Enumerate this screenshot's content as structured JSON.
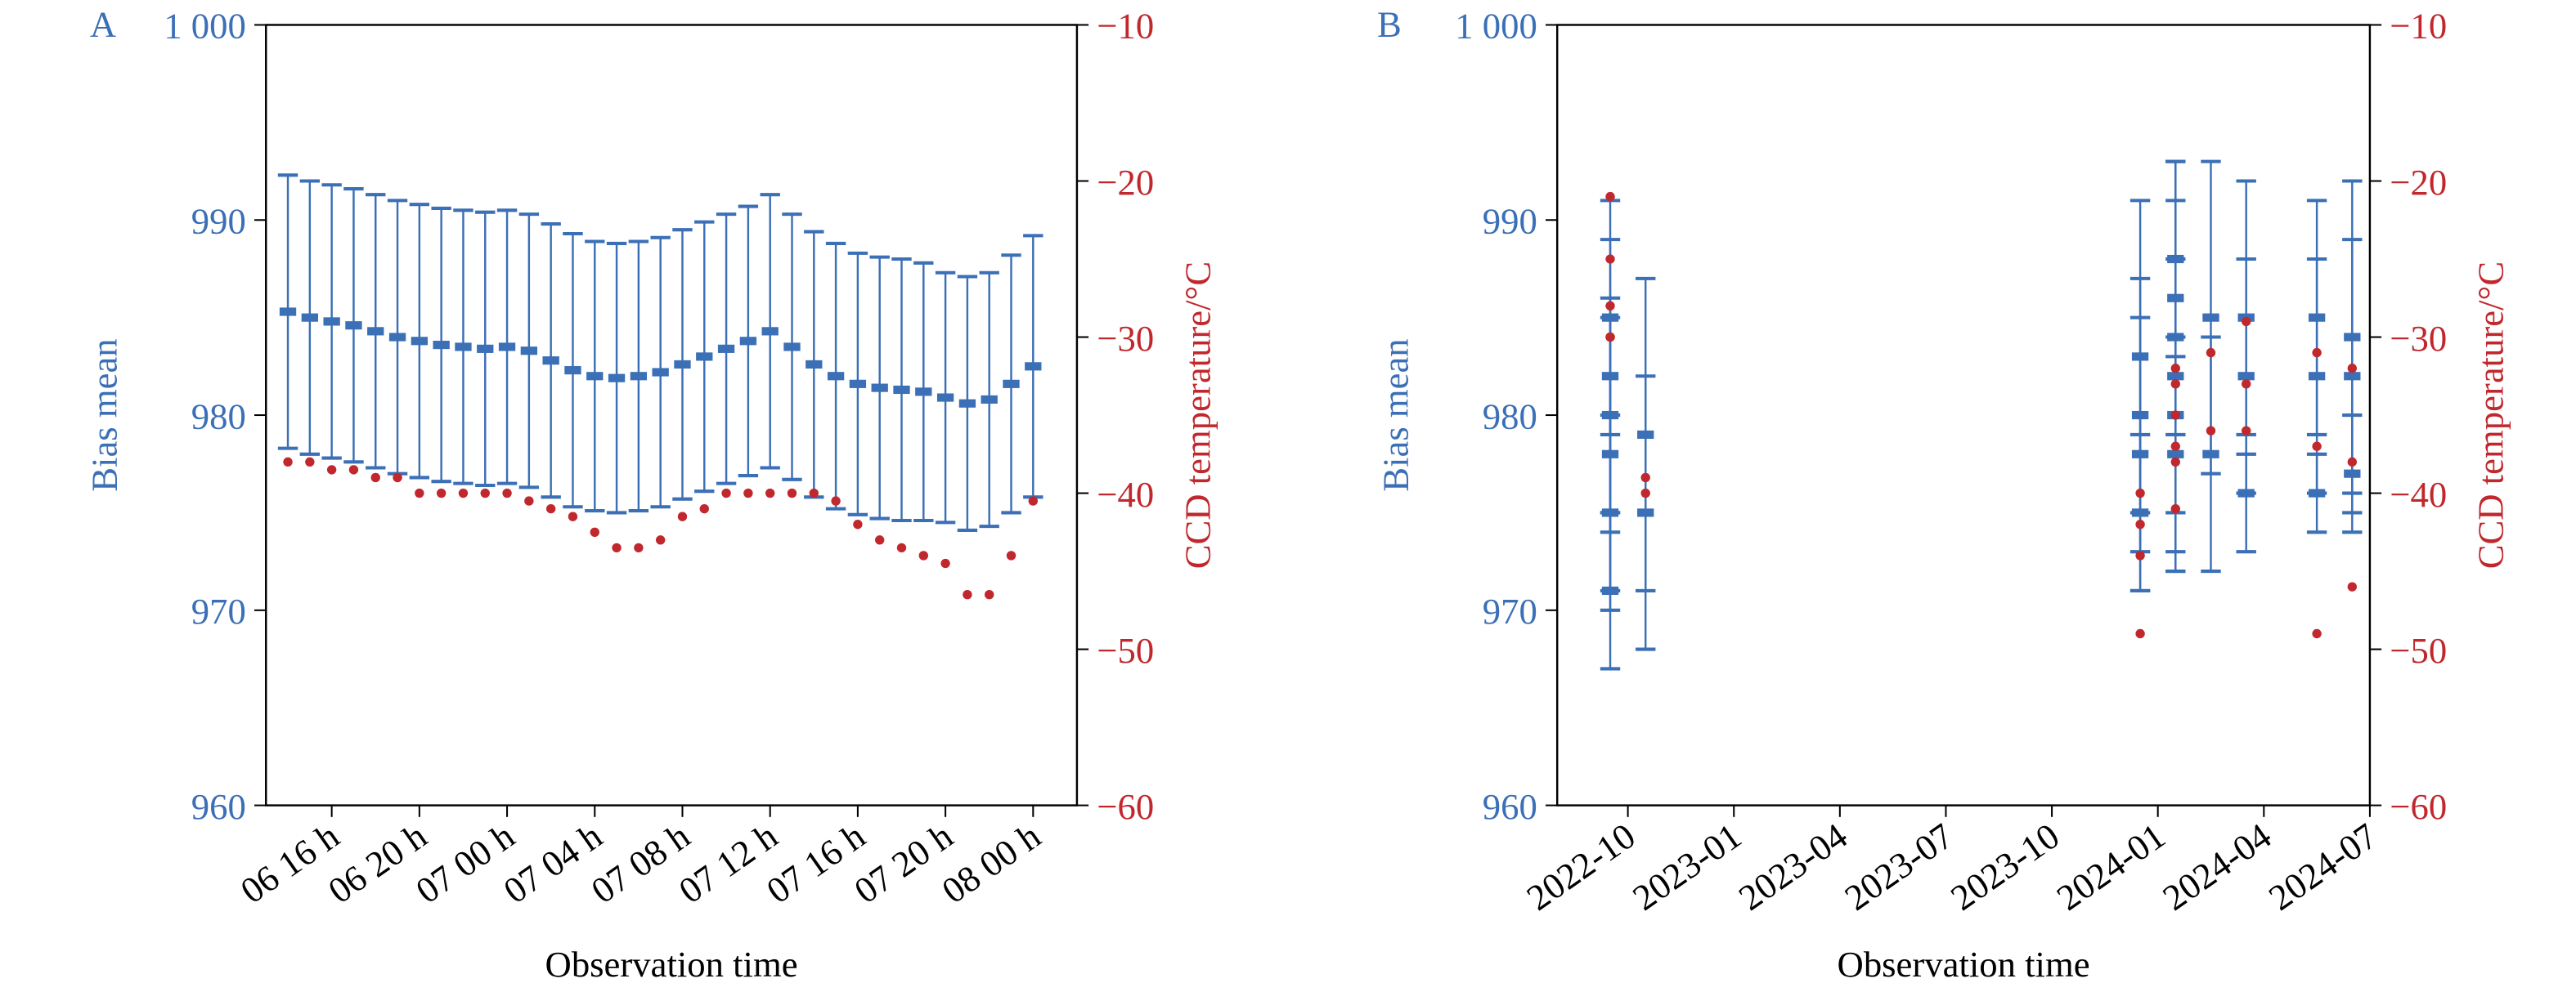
{
  "chart_data": [
    {
      "type": "scatter",
      "title": "A",
      "xlabel": "Observation time",
      "ylabel": "Bias mean",
      "y2label": "CCD temperature/°C",
      "x": [
        14,
        15,
        16,
        17,
        18,
        19,
        20,
        21,
        22,
        23,
        24,
        25,
        26,
        27,
        28,
        29,
        30,
        31,
        32,
        33,
        34,
        35,
        36,
        37,
        38,
        39,
        40,
        41,
        42,
        43,
        44,
        45,
        46,
        47,
        48
      ],
      "series": [
        {
          "color": "#3b6fb6",
          "values": [
            985.3,
            985,
            984.8,
            984.6,
            984.3,
            984,
            983.8,
            983.6,
            983.5,
            983.4,
            983.5,
            983.3,
            982.8,
            982.3,
            982,
            981.9,
            982,
            982.2,
            982.6,
            983,
            983.4,
            983.8,
            984.3,
            983.5,
            982.6,
            982,
            981.6,
            981.4,
            981.3,
            981.2,
            980.9,
            980.6,
            980.8,
            981.6,
            982.5
          ],
          "errors": [
            7,
            7,
            7,
            7,
            7,
            7,
            7,
            7,
            7,
            7,
            7,
            7,
            7,
            7,
            6.9,
            6.9,
            6.9,
            6.9,
            6.9,
            6.9,
            6.9,
            6.9,
            7,
            6.8,
            6.8,
            6.8,
            6.7,
            6.7,
            6.7,
            6.6,
            6.4,
            6.5,
            6.5,
            6.6,
            6.7
          ]
        },
        {
          "color": "#c0282d",
          "axis": "y2",
          "values": [
            -38,
            -38,
            -38.5,
            -38.5,
            -39,
            -39,
            -40,
            -40,
            -40,
            -40,
            -40,
            -40.5,
            -41,
            -41.5,
            -42.5,
            -43.5,
            -43.5,
            -43,
            -41.5,
            -41,
            -40,
            -40,
            -40,
            -40,
            -40,
            -40.5,
            -42,
            -43,
            -43.5,
            -44,
            -44.5,
            -46.5,
            -46.5,
            -44,
            -40.5
          ]
        }
      ],
      "xlim": [
        13,
        50
      ],
      "xticks": [
        {
          "value": 16,
          "label": "06 16 h"
        },
        {
          "value": 20,
          "label": "06 20 h"
        },
        {
          "value": 24,
          "label": "07 00 h"
        },
        {
          "value": 28,
          "label": "07 04 h"
        },
        {
          "value": 32,
          "label": "07 08 h"
        },
        {
          "value": 36,
          "label": "07 12 h"
        },
        {
          "value": 40,
          "label": "07 16 h"
        },
        {
          "value": 44,
          "label": "07 20 h"
        },
        {
          "value": 48,
          "label": "08 00 h"
        }
      ],
      "ylim": [
        960,
        1000
      ],
      "yticks": [
        960,
        970,
        980,
        990,
        {
          "value": 1000,
          "label": "1 000"
        }
      ],
      "y2lim": [
        -60,
        -10
      ],
      "y2ticks": [
        {
          "value": -60,
          "label": "−60"
        },
        {
          "value": -50,
          "label": "−50"
        },
        {
          "value": -40,
          "label": "−40"
        },
        {
          "value": -30,
          "label": "−30"
        },
        {
          "value": -20,
          "label": "−20"
        },
        {
          "value": -10,
          "label": "−10"
        }
      ]
    },
    {
      "type": "scatter",
      "title": "B",
      "xlabel": "Observation time",
      "ylabel": "Bias mean",
      "y2label": "CCD temperature/°C",
      "x": [
        "2022-09",
        "2022-09",
        "2022-09",
        "2022-09",
        "2022-09",
        "2022-09",
        "2022-10",
        "2022-10",
        "2023-12",
        "2023-12",
        "2023-12",
        "2023-12",
        "2024-01",
        "2024-01",
        "2024-01",
        "2024-01",
        "2024-01",
        "2024-01",
        "2024-02",
        "2024-02",
        "2024-03",
        "2024-03",
        "2024-03",
        "2024-05",
        "2024-05",
        "2024-05",
        "2024-06",
        "2024-06",
        "2024-06"
      ],
      "series": [
        {
          "color": "#3b6fb6",
          "values": [
            985,
            982,
            978,
            980,
            975,
            971,
            979,
            975,
            980,
            983,
            978,
            975,
            984,
            980,
            986,
            982,
            978,
            988,
            985,
            978,
            985,
            982,
            976,
            985,
            982,
            976,
            984,
            982,
            977
          ],
          "errors": [
            6,
            7,
            7,
            6,
            5,
            4,
            8,
            7,
            7,
            8,
            7,
            4,
            9,
            8,
            7,
            9,
            6,
            5,
            8,
            6,
            7,
            6,
            3,
            6,
            6,
            2,
            8,
            7,
            3
          ]
        },
        {
          "color": "#c0282d",
          "axis": "y2",
          "values": [
            -21,
            -28,
            -30,
            -30,
            -25,
            -30,
            -39,
            -40,
            -49,
            -44,
            -42,
            -40,
            -32,
            -35,
            -33,
            -37,
            -38,
            -41,
            -31,
            -36,
            -29,
            -33,
            -36,
            -49,
            -37,
            -31,
            -32,
            -38,
            -46
          ]
        }
      ],
      "xlim": [
        "2022-08",
        "2024-07"
      ],
      "xticks": [
        "2022-10",
        "2023-01",
        "2023-04",
        "2023-07",
        "2023-10",
        "2024-01",
        "2024-04",
        "2024-07"
      ],
      "ylim": [
        960,
        1000
      ],
      "yticks": [
        960,
        970,
        980,
        990,
        {
          "value": 1000,
          "label": "1 000"
        }
      ],
      "y2lim": [
        -60,
        -10
      ],
      "y2ticks": [
        {
          "value": -60,
          "label": "−60"
        },
        {
          "value": -50,
          "label": "−50"
        },
        {
          "value": -40,
          "label": "−40"
        },
        {
          "value": -30,
          "label": "−30"
        },
        {
          "value": -20,
          "label": "−20"
        },
        {
          "value": -10,
          "label": "−10"
        }
      ]
    }
  ]
}
